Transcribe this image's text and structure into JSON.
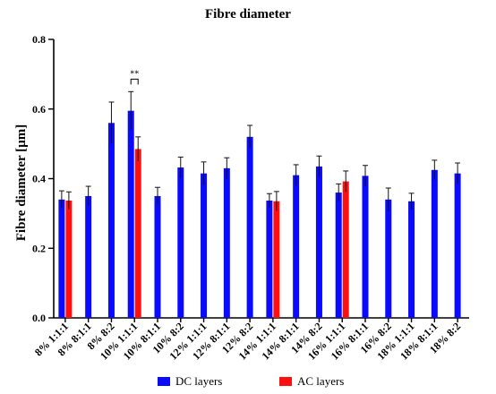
{
  "chart_data": {
    "type": "bar",
    "title": "Fibre diameter",
    "ylabel": "Fibre diameter [µm]",
    "xlabel": "",
    "ylim": [
      0.0,
      0.8
    ],
    "yticks": [
      "0.0",
      "0.2",
      "0.4",
      "0.6",
      "0.8"
    ],
    "yticks_values": [
      0.0,
      0.2,
      0.4,
      0.6,
      0.8
    ],
    "categories": [
      "8% 1:1:1",
      "8% 8:1:1",
      "8% 8:2",
      "10% 1:1:1",
      "10% 8:1:1",
      "10% 8:2",
      "12% 1:1:1",
      "12% 8:1:1",
      "12% 8:2",
      "14% 1:1:1",
      "14% 8:1:1",
      "14% 8:2",
      "16% 1:1:1",
      "16% 8:1:1",
      "16% 8:2",
      "18% 1:1:1",
      "18% 8:1:1",
      "18% 8:2"
    ],
    "series": [
      {
        "name": "DC layers",
        "color": "#0a0aff",
        "values": [
          0.34,
          0.35,
          0.56,
          0.595,
          0.35,
          0.432,
          0.415,
          0.43,
          0.52,
          0.337,
          0.41,
          0.435,
          0.36,
          0.408,
          0.34,
          0.335,
          0.425,
          0.415
        ],
        "errors": [
          0.025,
          0.028,
          0.06,
          0.055,
          0.025,
          0.03,
          0.033,
          0.03,
          0.033,
          0.02,
          0.03,
          0.03,
          0.025,
          0.03,
          0.033,
          0.023,
          0.028,
          0.03
        ]
      },
      {
        "name": "AC layers",
        "color": "#ff1010",
        "values": [
          0.337,
          null,
          null,
          0.485,
          null,
          null,
          null,
          null,
          null,
          0.335,
          null,
          null,
          0.392,
          null,
          null,
          null,
          null,
          null
        ],
        "errors": [
          0.025,
          null,
          null,
          0.035,
          null,
          null,
          null,
          null,
          null,
          0.028,
          null,
          null,
          0.03,
          null,
          null,
          null,
          null,
          null
        ]
      }
    ],
    "annotations": [
      {
        "text": "**",
        "category": "10% 1:1:1"
      }
    ],
    "legend": "bottom",
    "grid": false
  }
}
